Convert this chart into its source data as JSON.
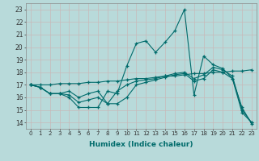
{
  "xlabel": "Humidex (Indice chaleur)",
  "xlim": [
    -0.5,
    23.5
  ],
  "ylim": [
    13.5,
    23.5
  ],
  "yticks": [
    14,
    15,
    16,
    17,
    18,
    19,
    20,
    21,
    22,
    23
  ],
  "xticks": [
    0,
    1,
    2,
    3,
    4,
    5,
    6,
    7,
    8,
    9,
    10,
    11,
    12,
    13,
    14,
    15,
    16,
    17,
    18,
    19,
    20,
    21,
    22,
    23
  ],
  "bg_color": "#b8dada",
  "grid_color": "#c8b8b8",
  "line_color": "#006b6b",
  "lines": [
    [
      17.0,
      16.8,
      16.3,
      16.3,
      16.0,
      15.2,
      15.2,
      15.2,
      16.5,
      16.3,
      18.5,
      20.3,
      20.5,
      19.6,
      20.4,
      21.3,
      23.0,
      16.2,
      19.3,
      18.6,
      18.3,
      17.5,
      15.2,
      13.9
    ],
    [
      17.0,
      16.8,
      16.3,
      16.3,
      16.5,
      16.0,
      16.3,
      16.5,
      15.5,
      16.5,
      17.0,
      17.3,
      17.4,
      17.5,
      17.7,
      17.9,
      18.0,
      17.5,
      17.8,
      18.4,
      18.2,
      17.7,
      15.0,
      14.0
    ],
    [
      17.0,
      16.8,
      16.3,
      16.3,
      16.2,
      15.6,
      15.8,
      16.0,
      15.5,
      15.5,
      16.0,
      17.0,
      17.2,
      17.4,
      17.6,
      17.8,
      17.9,
      17.3,
      17.5,
      18.2,
      18.0,
      17.5,
      14.8,
      14.0
    ],
    [
      17.0,
      17.0,
      17.0,
      17.1,
      17.1,
      17.1,
      17.2,
      17.2,
      17.3,
      17.3,
      17.4,
      17.5,
      17.5,
      17.6,
      17.7,
      17.7,
      17.8,
      17.9,
      17.9,
      18.0,
      18.0,
      18.1,
      18.1,
      18.2
    ]
  ]
}
